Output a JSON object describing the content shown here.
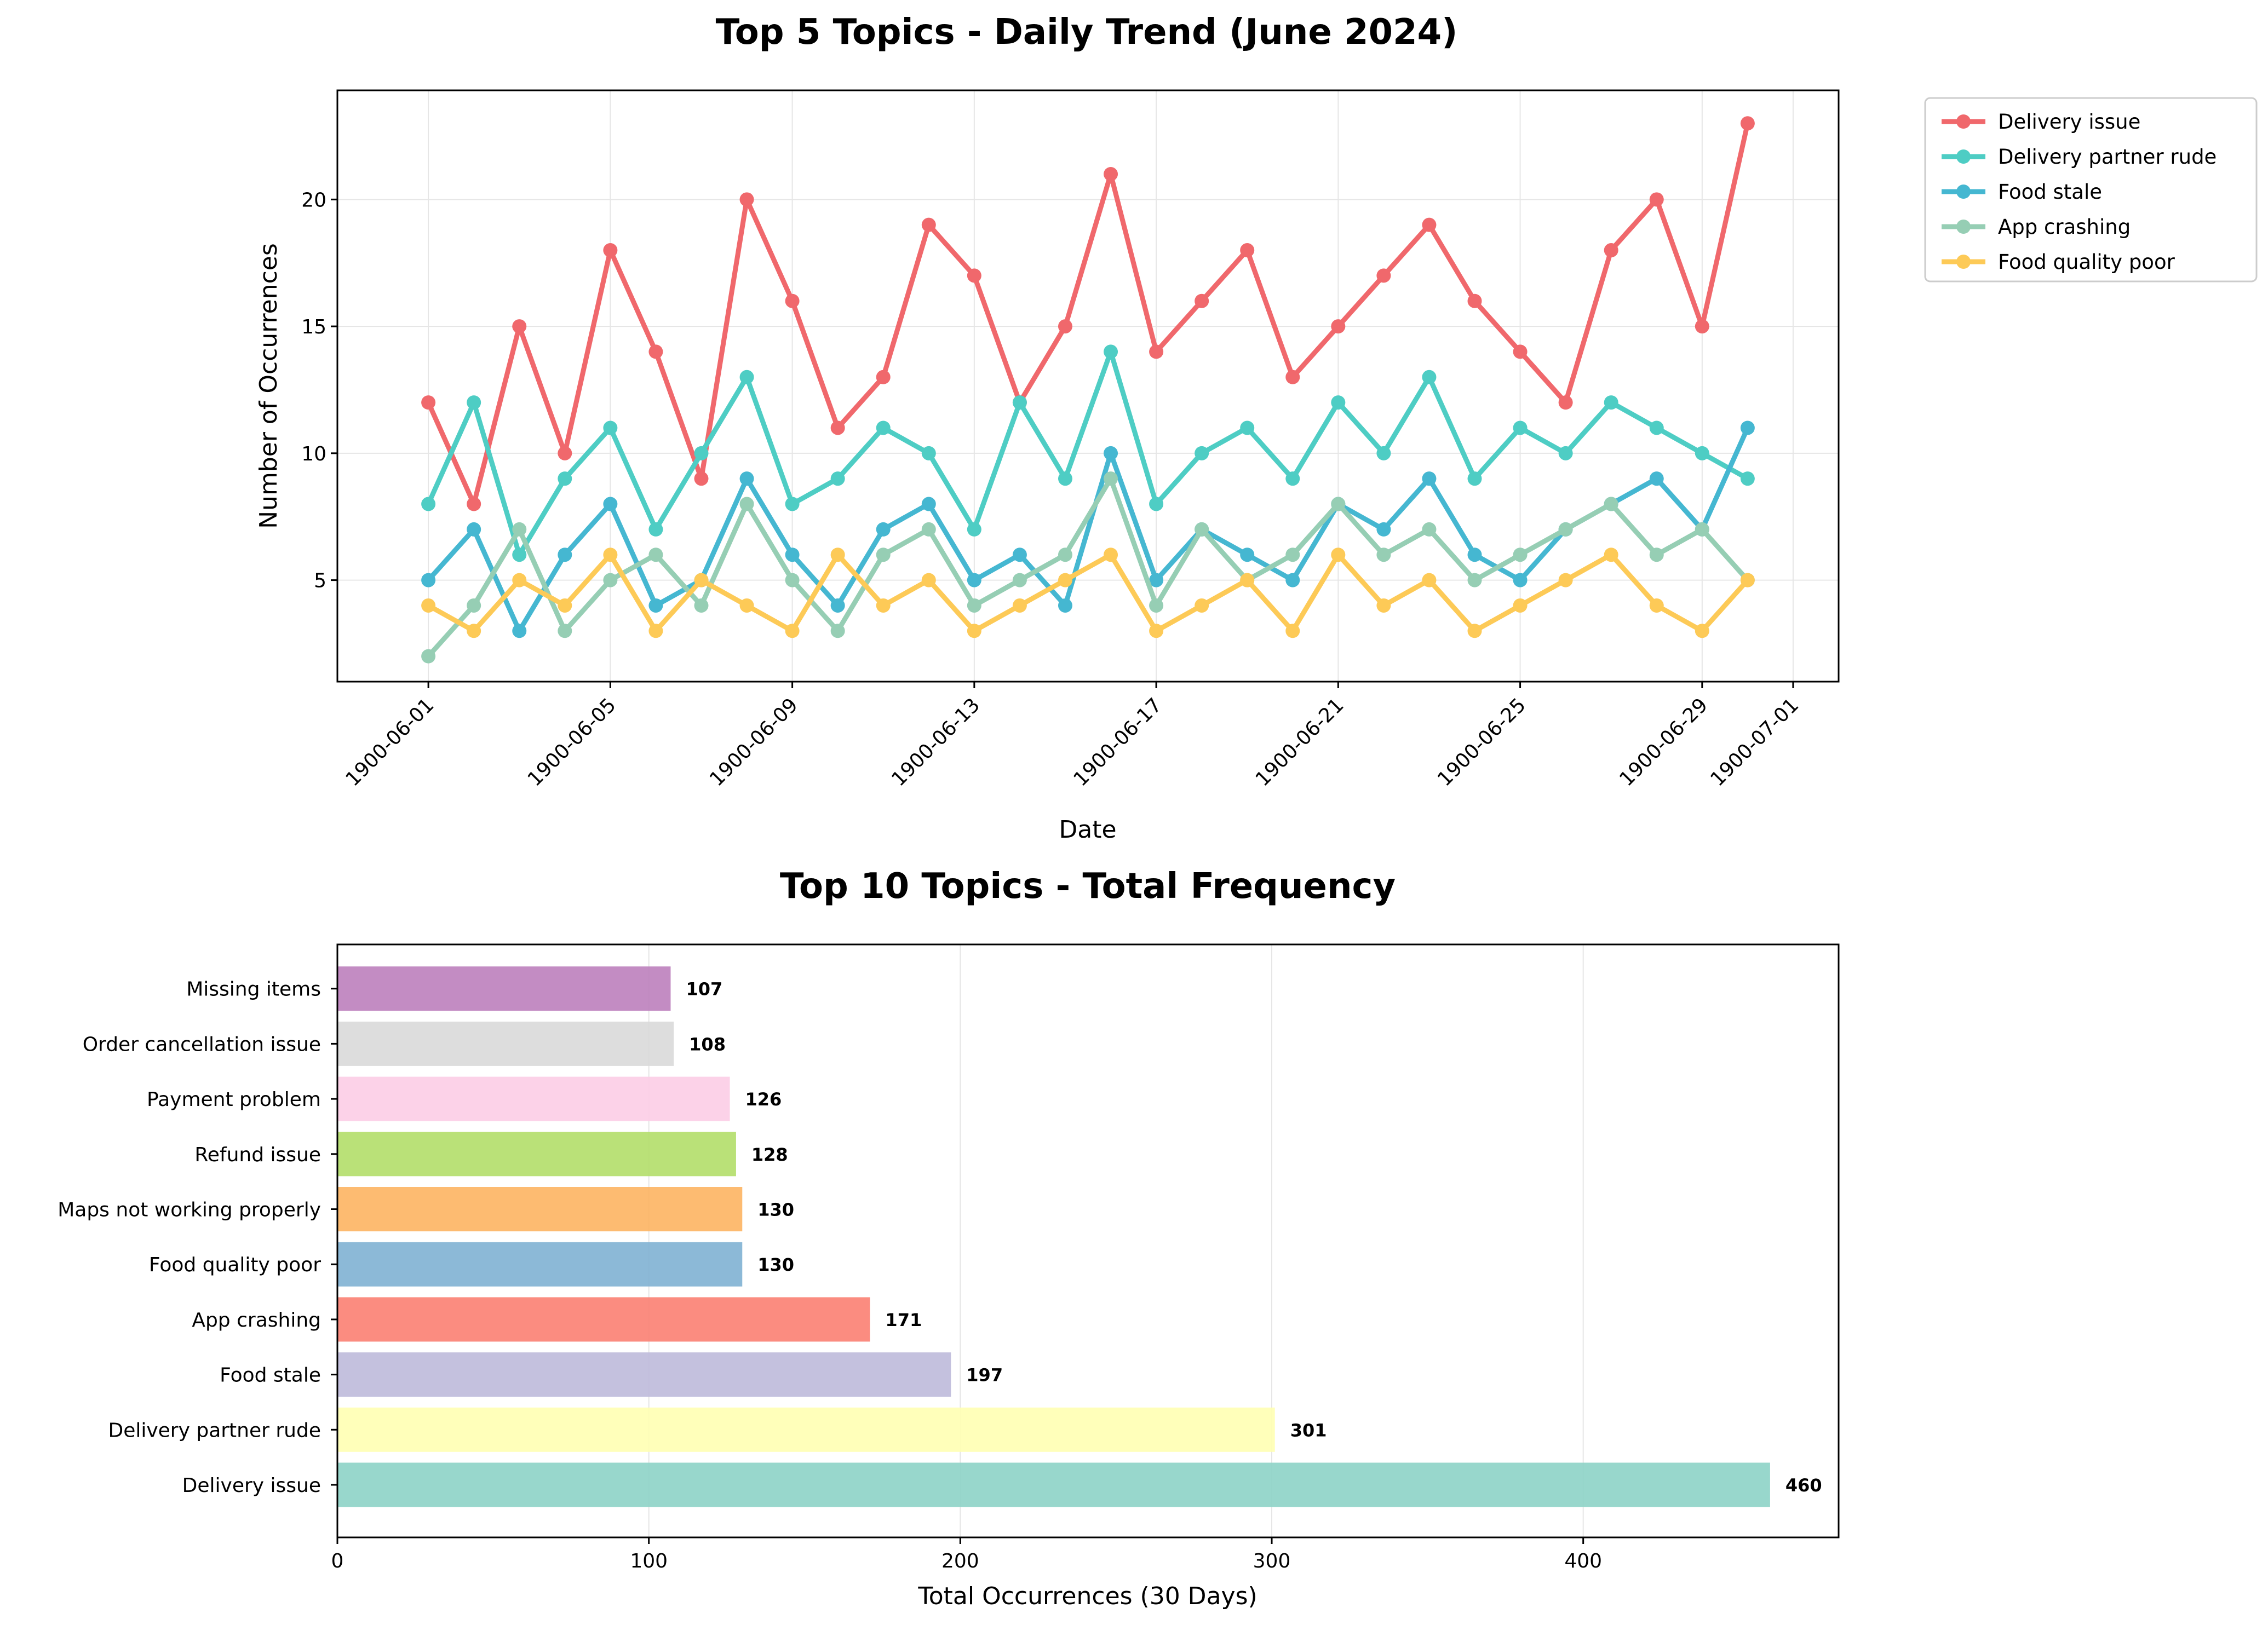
{
  "chart_data": [
    {
      "type": "line",
      "title": "Top 5 Topics - Daily Trend (June 2024)",
      "xlabel": "Date",
      "ylabel": "Number of Occurrences",
      "x_ticks": [
        "1900-06-01",
        "1900-06-05",
        "1900-06-09",
        "1900-06-13",
        "1900-06-17",
        "1900-06-21",
        "1900-06-25",
        "1900-06-29",
        "1900-07-01"
      ],
      "y_ticks": [
        5,
        10,
        15,
        20
      ],
      "ylim": [
        1,
        24.3
      ],
      "xlim": [
        "1900-05-30",
        "1900-07-02"
      ],
      "grid": true,
      "legend_position": "outside-right",
      "x": [
        "1900-06-01",
        "1900-06-02",
        "1900-06-03",
        "1900-06-04",
        "1900-06-05",
        "1900-06-06",
        "1900-06-07",
        "1900-06-08",
        "1900-06-09",
        "1900-06-10",
        "1900-06-11",
        "1900-06-12",
        "1900-06-13",
        "1900-06-14",
        "1900-06-15",
        "1900-06-16",
        "1900-06-17",
        "1900-06-18",
        "1900-06-19",
        "1900-06-20",
        "1900-06-21",
        "1900-06-22",
        "1900-06-23",
        "1900-06-24",
        "1900-06-25",
        "1900-06-26",
        "1900-06-27",
        "1900-06-28",
        "1900-06-29",
        "1900-06-30"
      ],
      "series": [
        {
          "name": "Delivery issue",
          "color": "#f0686c",
          "values": [
            12,
            8,
            15,
            10,
            18,
            14,
            9,
            20,
            16,
            11,
            13,
            19,
            17,
            12,
            15,
            21,
            14,
            16,
            18,
            13,
            15,
            17,
            19,
            16,
            14,
            12,
            18,
            20,
            15,
            23
          ]
        },
        {
          "name": "Delivery partner rude",
          "color": "#4ecdc4",
          "values": [
            8,
            12,
            6,
            9,
            11,
            7,
            10,
            13,
            8,
            9,
            11,
            10,
            7,
            12,
            9,
            14,
            8,
            10,
            11,
            9,
            12,
            10,
            13,
            9,
            11,
            10,
            12,
            11,
            10,
            9
          ]
        },
        {
          "name": "Food stale",
          "color": "#45b7d1",
          "values": [
            5,
            7,
            3,
            6,
            8,
            4,
            5,
            9,
            6,
            4,
            7,
            8,
            5,
            6,
            4,
            10,
            5,
            7,
            6,
            5,
            8,
            7,
            9,
            6,
            5,
            7,
            8,
            9,
            7,
            11
          ]
        },
        {
          "name": "App crashing",
          "color": "#96ceb4",
          "values": [
            2,
            4,
            7,
            3,
            5,
            6,
            4,
            8,
            5,
            3,
            6,
            7,
            4,
            5,
            6,
            9,
            4,
            7,
            5,
            6,
            8,
            6,
            7,
            5,
            6,
            7,
            8,
            6,
            7,
            5
          ]
        },
        {
          "name": "Food quality poor",
          "color": "#fdca57",
          "values": [
            4,
            3,
            5,
            4,
            6,
            3,
            5,
            4,
            3,
            6,
            4,
            5,
            3,
            4,
            5,
            6,
            3,
            4,
            5,
            3,
            6,
            4,
            5,
            3,
            4,
            5,
            6,
            4,
            3,
            5
          ]
        }
      ]
    },
    {
      "type": "bar",
      "orientation": "horizontal",
      "title": "Top 10 Topics - Total Frequency",
      "xlabel": "Total Occurrences (30 Days)",
      "xlim": [
        0,
        482
      ],
      "x_ticks": [
        0,
        100,
        200,
        300,
        400
      ],
      "grid": true,
      "categories": [
        "Delivery issue",
        "Delivery partner rude",
        "Food stale",
        "App crashing",
        "Food quality poor",
        "Maps not working properly",
        "Refund issue",
        "Payment problem",
        "Order cancellation issue",
        "Missing items"
      ],
      "values": [
        460,
        301,
        197,
        171,
        130,
        130,
        128,
        126,
        108,
        107
      ],
      "value_labels": [
        "460",
        "301",
        "197",
        "171",
        "130",
        "130",
        "128",
        "126",
        "108",
        "107"
      ],
      "colors": [
        "#8dd3c7",
        "#ffffb3",
        "#bebada",
        "#fb8072",
        "#80b1d3",
        "#fdb462",
        "#b3de69",
        "#fccde5",
        "#d9d9d9",
        "#bc80bd"
      ]
    }
  ]
}
